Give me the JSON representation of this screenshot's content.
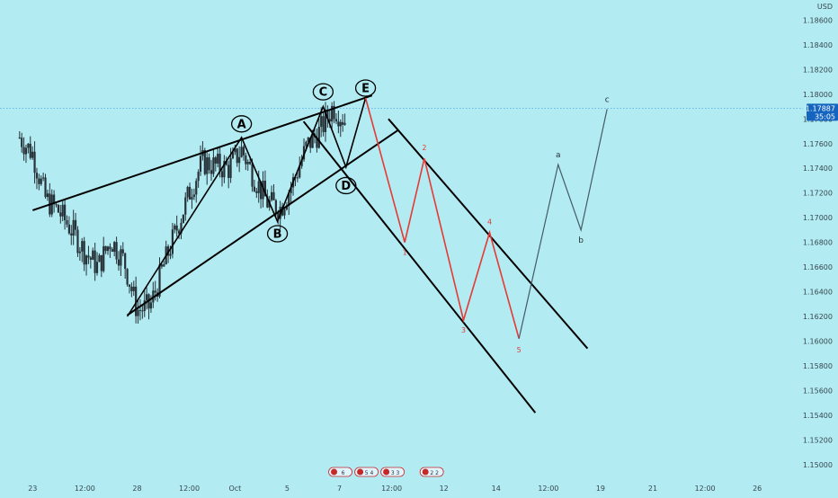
{
  "chart_data": {
    "type": "candlestick",
    "currency": "USD",
    "current_price": "1.17887",
    "countdown": "35:05",
    "y_ticks": [
      "1.18600",
      "1.18400",
      "1.18200",
      "1.18000",
      "1.17800",
      "1.17600",
      "1.17400",
      "1.17200",
      "1.17000",
      "1.16800",
      "1.16600",
      "1.16400",
      "1.16200",
      "1.16000",
      "1.15800",
      "1.15600",
      "1.15400",
      "1.15200",
      "1.15000"
    ],
    "y_tick_values": [
      1.186,
      1.184,
      1.182,
      1.18,
      1.178,
      1.176,
      1.174,
      1.172,
      1.17,
      1.168,
      1.166,
      1.164,
      1.162,
      1.16,
      1.158,
      1.156,
      1.154,
      1.152,
      1.15
    ],
    "ylim": [
      1.1494,
      1.1872
    ],
    "x_ticks": [
      "23",
      "12:00",
      "28",
      "12:00",
      "Oct",
      "5",
      "7",
      "12:00",
      "12",
      "14",
      "12:00",
      "19",
      "21",
      "12:00",
      "26"
    ],
    "x_tick_bars": [
      2,
      10,
      18,
      26,
      33,
      41,
      49,
      57,
      65,
      73,
      81,
      89,
      97,
      105,
      113
    ],
    "xlim": [
      -3,
      120
    ],
    "price_path": [
      [
        0,
        1.1765
      ],
      [
        2,
        1.1752
      ],
      [
        4,
        1.1715
      ],
      [
        6,
        1.1705
      ],
      [
        8,
        1.169
      ],
      [
        10,
        1.1672
      ],
      [
        12,
        1.166
      ],
      [
        14,
        1.1682
      ],
      [
        16,
        1.1665
      ],
      [
        18,
        1.1625
      ],
      [
        20,
        1.1628
      ],
      [
        22,
        1.166
      ],
      [
        24,
        1.169
      ],
      [
        26,
        1.172
      ],
      [
        28,
        1.1745
      ],
      [
        30,
        1.1742
      ],
      [
        32,
        1.174
      ],
      [
        34,
        1.1755
      ],
      [
        36,
        1.1732
      ],
      [
        38,
        1.1712
      ],
      [
        40,
        1.1708
      ],
      [
        42,
        1.173
      ],
      [
        44,
        1.1758
      ],
      [
        46,
        1.177
      ],
      [
        48,
        1.179
      ],
      [
        50,
        1.1778
      ]
    ],
    "wave_labels": [
      {
        "text": "A",
        "bar": 34,
        "price": 1.1776
      },
      {
        "text": "B",
        "bar": 39.5,
        "price": 1.1687
      },
      {
        "text": "C",
        "bar": 46.5,
        "price": 1.1802
      },
      {
        "text": "D",
        "bar": 50,
        "price": 1.1726
      },
      {
        "text": "E",
        "bar": 53,
        "price": 1.1805
      }
    ],
    "abcde_path": [
      [
        16.5,
        1.162
      ],
      [
        34,
        1.1765
      ],
      [
        39.5,
        1.1697
      ],
      [
        46.5,
        1.179
      ],
      [
        50,
        1.1741
      ],
      [
        53,
        1.1797
      ]
    ],
    "triangle_lines": [
      [
        [
          2,
          1.1706
        ],
        [
          54,
          1.1799
        ]
      ],
      [
        [
          16.5,
          1.1621
        ],
        [
          58,
          1.1771
        ]
      ],
      [
        [
          43.5,
          1.1778
        ],
        [
          79,
          1.1542
        ]
      ],
      [
        [
          56.5,
          1.178
        ],
        [
          87,
          1.1594
        ]
      ]
    ],
    "impulse_path": [
      [
        53,
        1.1797
      ],
      [
        59,
        1.168
      ],
      [
        62,
        1.1748
      ],
      [
        68,
        1.1617
      ],
      [
        72,
        1.1688
      ],
      [
        76.5,
        1.1602
      ]
    ],
    "impulse_labels": [
      {
        "text": "1",
        "bar": 59,
        "price": 1.1672
      },
      {
        "text": "2",
        "bar": 62,
        "price": 1.1757
      },
      {
        "text": "3",
        "bar": 68,
        "price": 1.1609
      },
      {
        "text": "4",
        "bar": 72,
        "price": 1.1697
      },
      {
        "text": "5",
        "bar": 76.5,
        "price": 1.1593
      }
    ],
    "correction_path": [
      [
        76.5,
        1.1602
      ],
      [
        82.5,
        1.1743
      ],
      [
        86,
        1.169
      ],
      [
        90,
        1.1788
      ]
    ],
    "correction_labels": [
      {
        "text": "a",
        "bar": 82.5,
        "price": 1.1751
      },
      {
        "text": "b",
        "bar": 86,
        "price": 1.1682
      },
      {
        "text": "c",
        "bar": 90,
        "price": 1.1796
      }
    ],
    "event_markers": [
      "6",
      "5 4",
      "3 3",
      "2 2"
    ],
    "event_marker_bars": [
      49,
      53,
      57,
      63
    ]
  },
  "colors": {
    "background": "#b2ebf2",
    "candles": "#263238",
    "lines": "#000000",
    "impulse": "#e53935",
    "correction": "#455a64",
    "price_badge": "#1565c0"
  }
}
